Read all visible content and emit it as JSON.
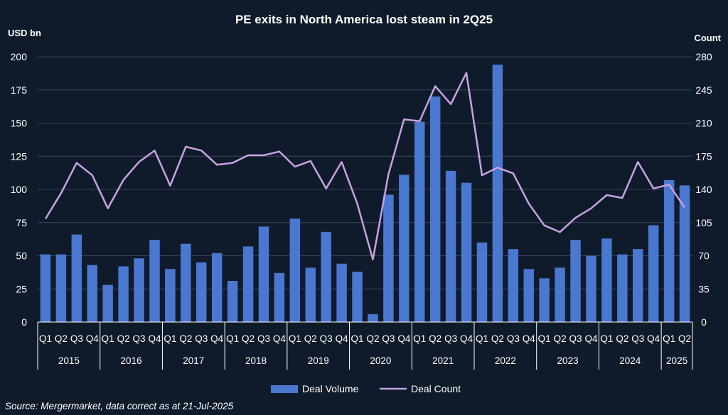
{
  "chart_data": {
    "type": "bar",
    "title": "PE exits in North America lost steam in 2Q25",
    "y_left_label": "USD bn",
    "y_right_label": "Count",
    "ylim_left": [
      0,
      200
    ],
    "ylim_right": [
      0,
      280
    ],
    "y_left_ticks": [
      0,
      25,
      50,
      75,
      100,
      125,
      150,
      175,
      200
    ],
    "y_right_ticks": [
      0,
      35,
      70,
      105,
      140,
      175,
      210,
      245,
      280
    ],
    "grid": true,
    "legend_position": "bottom",
    "colors": {
      "bar": "#4a78d1",
      "line": "#c8a2e0",
      "background": "#0f1b2b",
      "grid": "#3a4656"
    },
    "quarters": [
      "Q1",
      "Q2",
      "Q3",
      "Q4",
      "Q1",
      "Q2",
      "Q3",
      "Q4",
      "Q1",
      "Q2",
      "Q3",
      "Q4",
      "Q1",
      "Q2",
      "Q3",
      "Q4",
      "Q1",
      "Q2",
      "Q3",
      "Q4",
      "Q1",
      "Q2",
      "Q3",
      "Q4",
      "Q1",
      "Q2",
      "Q3",
      "Q4",
      "Q1",
      "Q2",
      "Q3",
      "Q4",
      "Q1",
      "Q2",
      "Q3",
      "Q4",
      "Q1",
      "Q2",
      "Q3",
      "Q4",
      "Q1",
      "Q2"
    ],
    "years": [
      {
        "label": "2015",
        "count": 4
      },
      {
        "label": "2016",
        "count": 4
      },
      {
        "label": "2017",
        "count": 4
      },
      {
        "label": "2018",
        "count": 4
      },
      {
        "label": "2019",
        "count": 4
      },
      {
        "label": "2020",
        "count": 4
      },
      {
        "label": "2021",
        "count": 4
      },
      {
        "label": "2022",
        "count": 4
      },
      {
        "label": "2023",
        "count": 4
      },
      {
        "label": "2024",
        "count": 4
      },
      {
        "label": "2025",
        "count": 2
      }
    ],
    "series": [
      {
        "name": "Deal Volume",
        "kind": "bar",
        "axis": "left",
        "values": [
          51,
          51,
          66,
          43,
          28,
          42,
          48,
          62,
          40,
          59,
          45,
          52,
          31,
          57,
          72,
          37,
          78,
          41,
          68,
          44,
          38,
          6,
          96,
          111,
          151,
          170,
          114,
          105,
          60,
          194,
          55,
          40,
          33,
          41,
          62,
          50,
          63,
          51,
          55,
          73,
          107,
          103
        ]
      },
      {
        "name": "Deal Count",
        "kind": "line",
        "axis": "right",
        "values": [
          109,
          136,
          168,
          155,
          120,
          150,
          169,
          181,
          144,
          185,
          181,
          166,
          168,
          176,
          176,
          180,
          164,
          170,
          141,
          169,
          125,
          66,
          156,
          214,
          212,
          249,
          230,
          263,
          155,
          163,
          157,
          125,
          102,
          95,
          110,
          120,
          134,
          131,
          169,
          141,
          145,
          121
        ]
      }
    ]
  },
  "source": "Source: Mergermarket, data correct as at 21-Jul-2025"
}
